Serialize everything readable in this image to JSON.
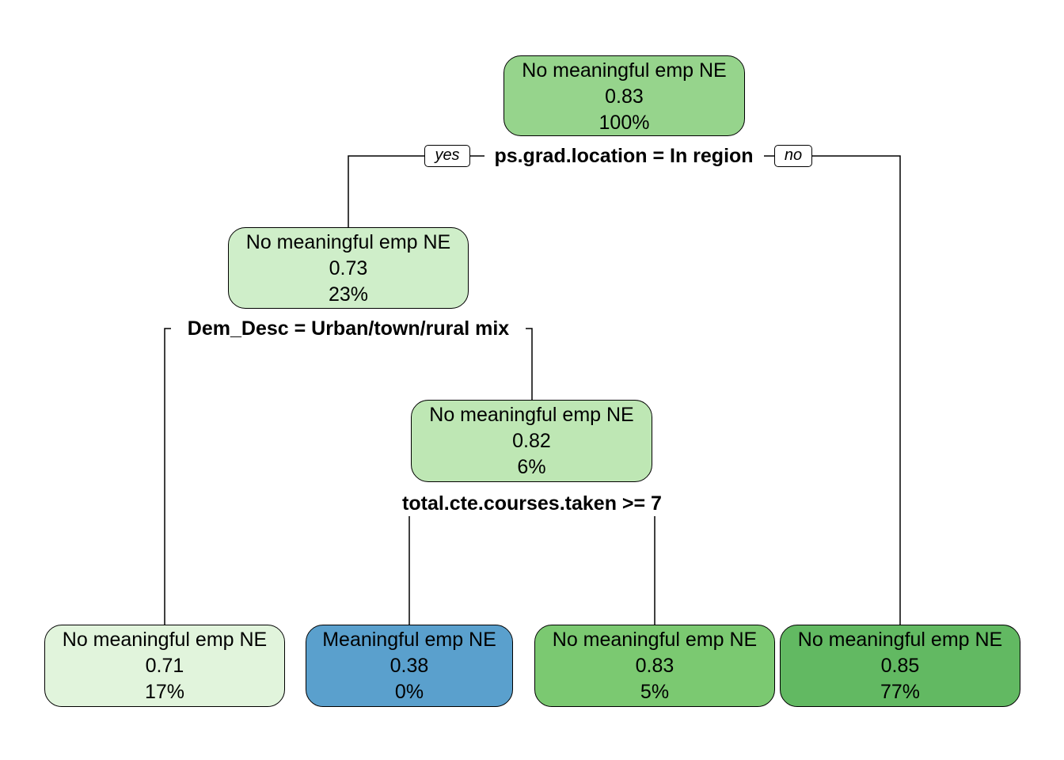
{
  "tree": {
    "nodes": [
      {
        "id": "root",
        "class": "No meaningful emp NE",
        "prob": "0.83",
        "pct": "100%",
        "fill": "#96d48c"
      },
      {
        "id": "in-region",
        "class": "No meaningful emp NE",
        "prob": "0.73",
        "pct": "23%",
        "fill": "#cfeec9"
      },
      {
        "id": "not-urban-mix",
        "class": "No meaningful emp NE",
        "prob": "0.82",
        "pct": "6%",
        "fill": "#bee7b4"
      },
      {
        "id": "leaf-urban-mix",
        "class": "No meaningful emp NE",
        "prob": "0.71",
        "pct": "17%",
        "fill": "#e1f4dc"
      },
      {
        "id": "leaf-cte-ge7",
        "class": "Meaningful emp NE",
        "prob": "0.38",
        "pct": "0%",
        "fill": "#5aa0cd"
      },
      {
        "id": "leaf-cte-lt7",
        "class": "No meaningful emp NE",
        "prob": "0.83",
        "pct": "5%",
        "fill": "#7bc971"
      },
      {
        "id": "leaf-out-region",
        "class": "No meaningful emp NE",
        "prob": "0.85",
        "pct": "77%",
        "fill": "#62b962"
      }
    ],
    "splits": [
      {
        "label": "ps.grad.location = In region"
      },
      {
        "label": "Dem_Desc = Urban/town/rural mix"
      },
      {
        "label": "total.cte.courses.taken >= 7"
      }
    ],
    "branch_tags": {
      "yes": "yes",
      "no": "no"
    }
  }
}
